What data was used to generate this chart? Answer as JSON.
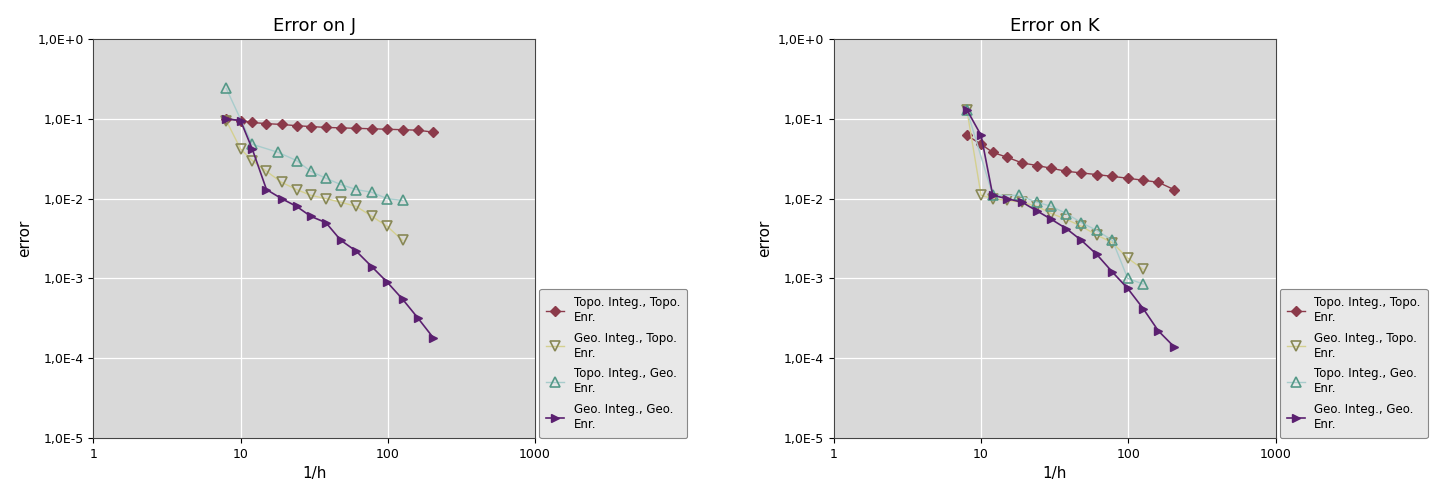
{
  "title_J": "Error on J",
  "title_K": "Error on K",
  "xlabel": "1/h",
  "ylabel": "error",
  "xlim": [
    1,
    1000
  ],
  "ylim": [
    1e-05,
    1.0
  ],
  "background_color": "#d9d9d9",
  "fig_background": "#ffffff",
  "J_topo_topo_x": [
    8,
    10,
    12,
    15,
    19,
    24,
    30,
    38,
    48,
    61,
    78,
    99,
    126,
    160,
    204
  ],
  "J_topo_topo_y": [
    0.1,
    0.095,
    0.09,
    0.087,
    0.085,
    0.082,
    0.08,
    0.078,
    0.077,
    0.076,
    0.075,
    0.074,
    0.073,
    0.072,
    0.068
  ],
  "J_geo_topo_x": [
    8,
    10,
    12,
    15,
    19,
    24,
    30,
    38,
    48,
    61,
    78,
    99,
    126
  ],
  "J_geo_topo_y": [
    0.095,
    0.042,
    0.03,
    0.022,
    0.016,
    0.013,
    0.011,
    0.01,
    0.009,
    0.008,
    0.006,
    0.0045,
    0.003
  ],
  "J_topo_geo_x": [
    8,
    12,
    18,
    24,
    30,
    38,
    48,
    61,
    78,
    99,
    126
  ],
  "J_topo_geo_y": [
    0.24,
    0.048,
    0.038,
    0.03,
    0.022,
    0.018,
    0.015,
    0.013,
    0.012,
    0.01,
    0.0095
  ],
  "J_geo_geo_x": [
    8,
    10,
    12,
    15,
    19,
    24,
    30,
    38,
    48,
    61,
    78,
    99,
    126,
    160,
    204
  ],
  "J_geo_geo_y": [
    0.1,
    0.095,
    0.042,
    0.013,
    0.01,
    0.008,
    0.006,
    0.005,
    0.003,
    0.0022,
    0.0014,
    0.0009,
    0.00055,
    0.00032,
    0.00018
  ],
  "K_topo_topo_x": [
    8,
    10,
    12,
    15,
    19,
    24,
    30,
    38,
    48,
    61,
    78,
    99,
    126,
    160,
    204
  ],
  "K_topo_topo_y": [
    0.062,
    0.048,
    0.038,
    0.033,
    0.028,
    0.026,
    0.024,
    0.022,
    0.021,
    0.02,
    0.019,
    0.018,
    0.017,
    0.016,
    0.013
  ],
  "K_geo_topo_x": [
    8,
    10,
    12,
    15,
    19,
    24,
    30,
    38,
    48,
    61,
    78,
    99,
    126
  ],
  "K_geo_topo_y": [
    0.13,
    0.011,
    0.01,
    0.0095,
    0.009,
    0.008,
    0.0065,
    0.0055,
    0.0045,
    0.0035,
    0.0028,
    0.0018,
    0.0013
  ],
  "K_topo_geo_x": [
    8,
    12,
    18,
    24,
    30,
    38,
    48,
    61,
    78,
    99,
    126
  ],
  "K_topo_geo_y": [
    0.13,
    0.011,
    0.011,
    0.009,
    0.008,
    0.0065,
    0.005,
    0.004,
    0.003,
    0.001,
    0.00085
  ],
  "K_geo_geo_x": [
    8,
    10,
    12,
    15,
    19,
    24,
    30,
    38,
    48,
    61,
    78,
    99,
    126,
    160,
    204
  ],
  "K_geo_geo_y": [
    0.13,
    0.062,
    0.011,
    0.01,
    0.009,
    0.007,
    0.0055,
    0.0042,
    0.003,
    0.002,
    0.0012,
    0.00075,
    0.00042,
    0.00022,
    0.00014
  ],
  "color_topo_topo": "#8B3A4A",
  "color_geo_topo_line": "#d4d090",
  "color_geo_topo_marker": "#888855",
  "color_topo_geo_line": "#a8cccc",
  "color_topo_geo_marker": "#559988",
  "color_geo_geo": "#5b2070",
  "legend_labels": [
    "Topo. Integ., Topo.\nEnr.",
    "Geo. Integ., Topo.\nEnr.",
    "Topo. Integ., Geo.\nEnr.",
    "Geo. Integ., Geo.\nEnr."
  ]
}
